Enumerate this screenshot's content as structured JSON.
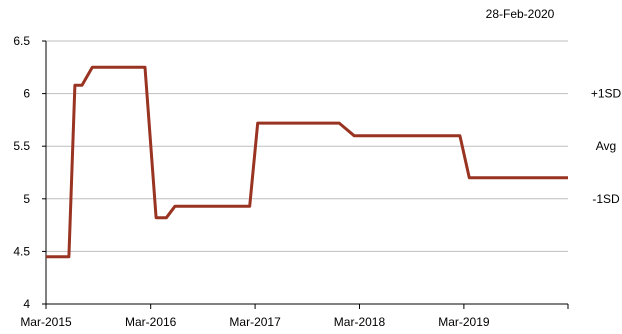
{
  "date_label": "28-Feb-2020",
  "colors": {
    "series": "#993322",
    "grid": "#bfbfbf",
    "axis": "#000000"
  },
  "chart_data": {
    "type": "line",
    "ylim": [
      4,
      6.5
    ],
    "y_ticks": [
      4,
      4.5,
      5,
      5.5,
      6,
      6.5
    ],
    "y_tick_labels": [
      "4",
      "4.5",
      "5",
      "5.5",
      "6",
      "6.5"
    ],
    "xlim": [
      "2015-03-01",
      "2020-02-28"
    ],
    "x_tick_labels": [
      {
        "date": "2015-03-01",
        "label": "Mar-2015"
      },
      {
        "date": "2016-03-01",
        "label": "Mar-2016"
      },
      {
        "date": "2017-03-01",
        "label": "Mar-2017"
      },
      {
        "date": "2018-03-01",
        "label": "Mar-2018"
      },
      {
        "date": "2019-03-01",
        "label": "Mar-2019"
      },
      {
        "date": "2020-02-28",
        "label": ""
      }
    ],
    "grid": "horizontal",
    "reference_lines": [
      {
        "label": "+1SD",
        "y": 6.0
      },
      {
        "label": "Avg",
        "y": 5.5
      },
      {
        "label": "-1SD",
        "y": 5.0
      }
    ],
    "series": [
      {
        "points": [
          [
            "2015-03-01",
            4.45
          ],
          [
            "2015-05-20",
            4.45
          ],
          [
            "2015-06-10",
            6.08
          ],
          [
            "2015-07-05",
            6.08
          ],
          [
            "2015-08-10",
            6.25
          ],
          [
            "2016-02-10",
            6.25
          ],
          [
            "2016-03-20",
            4.82
          ],
          [
            "2016-04-25",
            4.82
          ],
          [
            "2016-05-25",
            4.93
          ],
          [
            "2017-02-10",
            4.93
          ],
          [
            "2017-03-10",
            5.72
          ],
          [
            "2017-12-20",
            5.72
          ],
          [
            "2018-02-10",
            5.6
          ],
          [
            "2019-02-15",
            5.6
          ],
          [
            "2019-03-20",
            5.2
          ],
          [
            "2020-02-28",
            5.2
          ]
        ]
      }
    ]
  }
}
